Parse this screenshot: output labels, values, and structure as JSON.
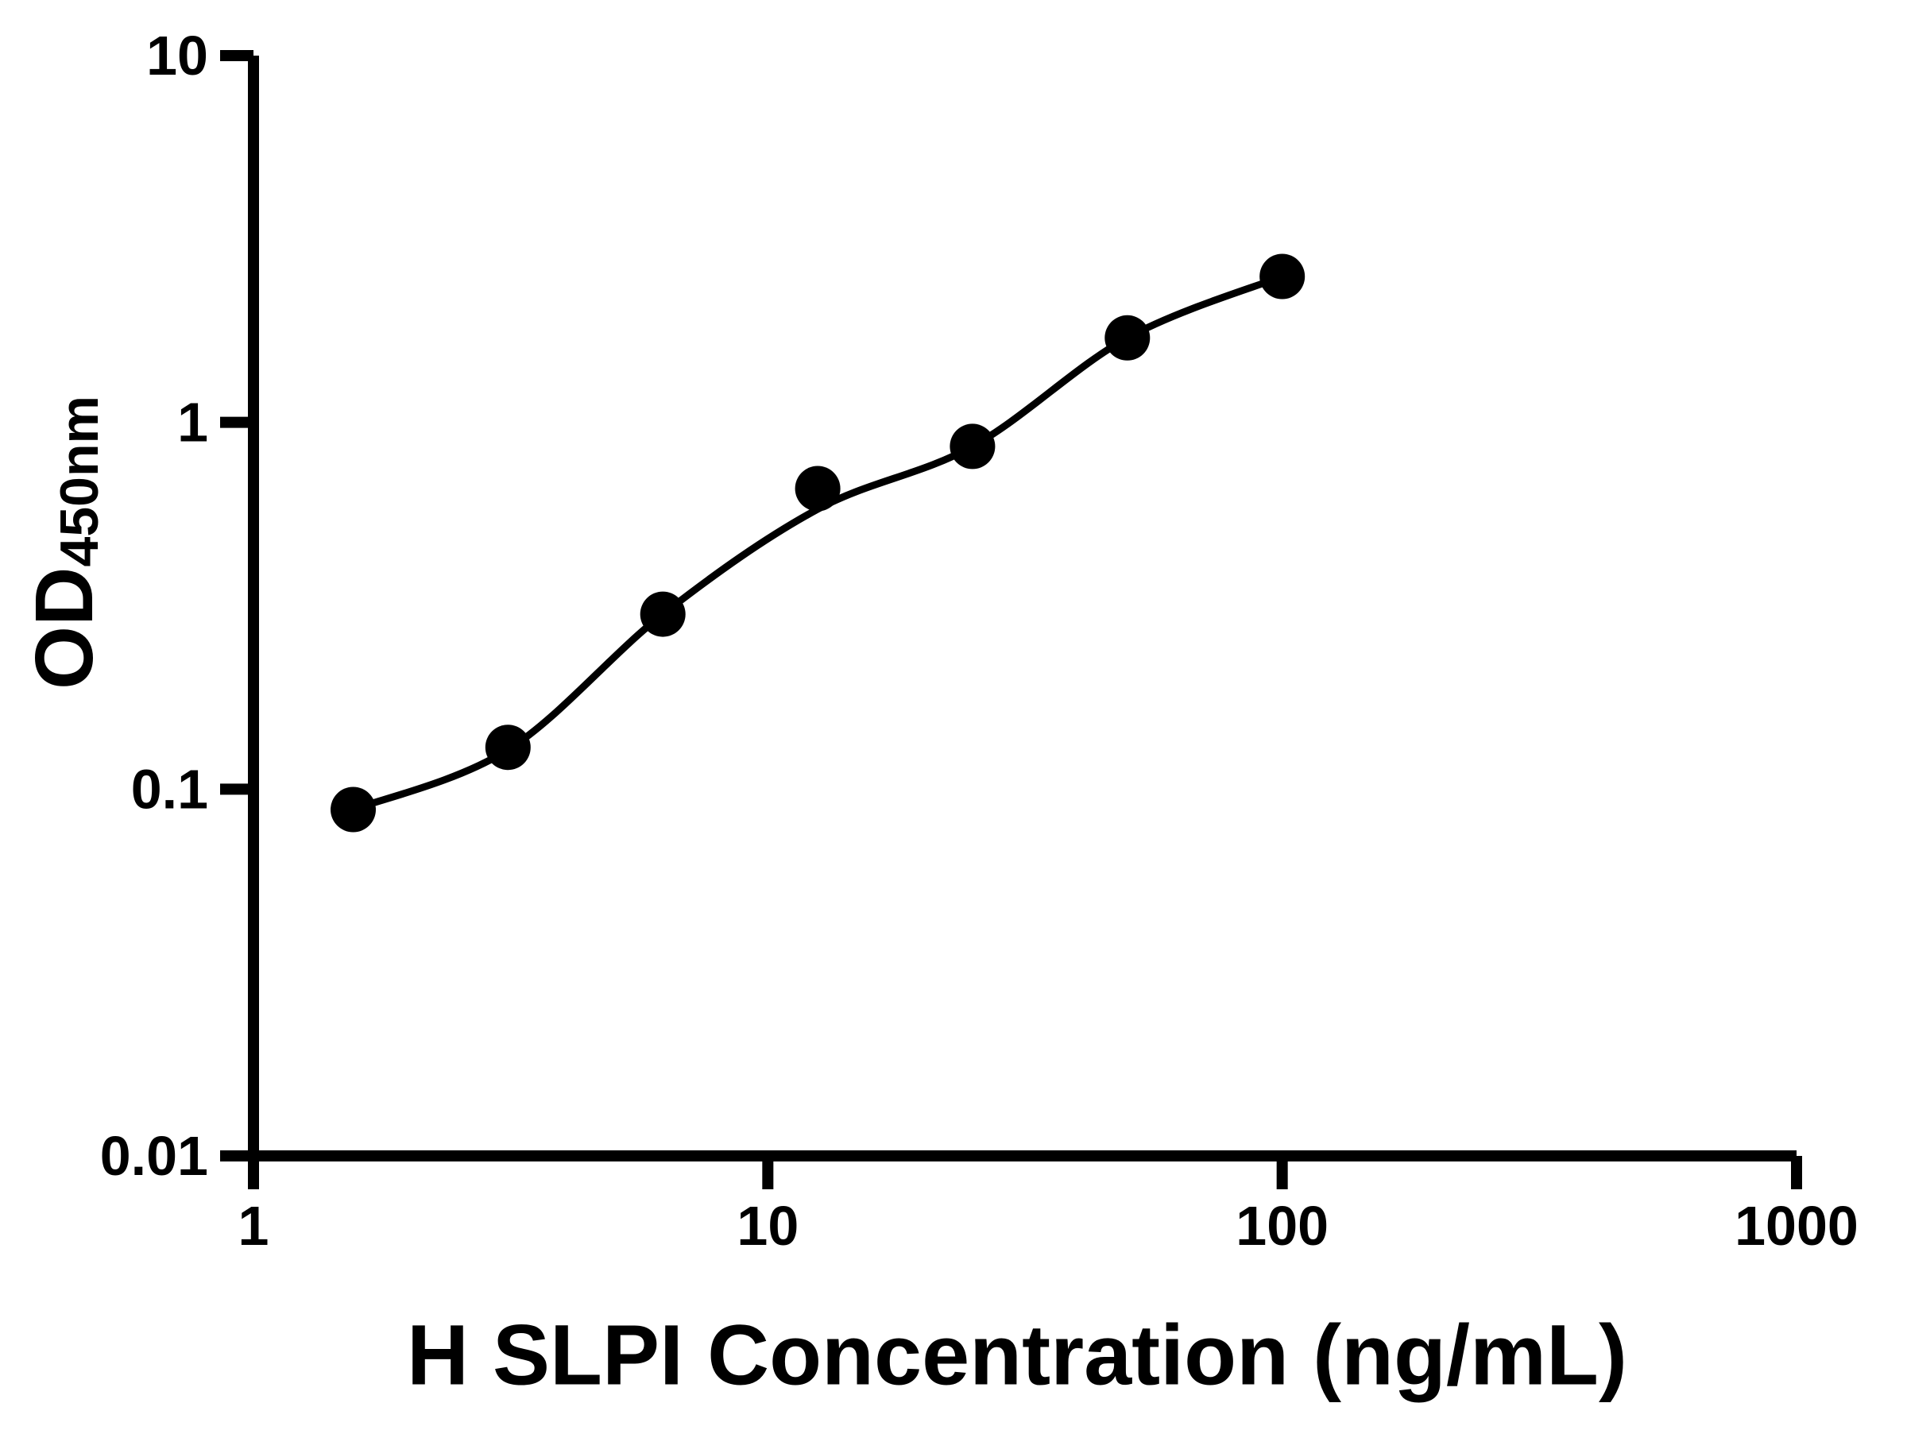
{
  "chart_data": {
    "type": "scatter",
    "title": "",
    "xlabel": "H SLPI Concentration (ng/mL)",
    "ylabel_main": "OD",
    "ylabel_sub": "450nm",
    "x_scale": "log10",
    "y_scale": "log10",
    "xlim": [
      1,
      1000
    ],
    "ylim": [
      0.01,
      10
    ],
    "grid": false,
    "legend": "none",
    "background_color": "#ffffff",
    "foreground_color": "#000000",
    "x_ticks": [
      {
        "value": 1,
        "label": "1"
      },
      {
        "value": 10,
        "label": "10"
      },
      {
        "value": 100,
        "label": "100"
      },
      {
        "value": 1000,
        "label": "1000"
      }
    ],
    "y_ticks": [
      {
        "value": 0.01,
        "label": "0.01"
      },
      {
        "value": 0.1,
        "label": "0.1"
      },
      {
        "value": 1,
        "label": "1"
      },
      {
        "value": 10,
        "label": "10"
      }
    ],
    "series": [
      {
        "name": "standard-points",
        "plot_as": "markers",
        "marker": "filled-circle",
        "color": "#000000",
        "x": [
          1.5625,
          3.125,
          6.25,
          12.5,
          25,
          50,
          100
        ],
        "od": [
          0.088,
          0.13,
          0.3,
          0.66,
          0.86,
          1.7,
          2.5
        ]
      },
      {
        "name": "fit-curve",
        "plot_as": "line",
        "color": "#000000",
        "x": [
          1.5625,
          3.125,
          6.25,
          12.5,
          25,
          50,
          100
        ],
        "od": [
          0.088,
          0.128,
          0.3,
          0.58,
          0.86,
          1.7,
          2.5
        ]
      }
    ]
  }
}
